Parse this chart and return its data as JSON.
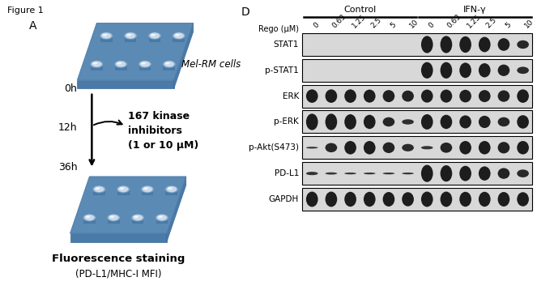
{
  "figure_label": "Figure 1",
  "panel_a_label": "A",
  "panel_d_label": "D",
  "panel_a": {
    "title_cell": "Mel-RM cells",
    "time_points": [
      "0h",
      "12h",
      "36h"
    ],
    "treatment_text": "167 kinase\ninhibitors\n(1 or 10 μM)",
    "bottom_label1": "Fluorescence staining",
    "bottom_label2": "(PD-L1/MHC-I MFI)",
    "plate_color": "#5b8ab5",
    "plate_side_color": "#4a7aa8",
    "well_color": "#ccdaeb"
  },
  "panel_d": {
    "control_label": "Control",
    "ifn_label": "IFN-γ",
    "rego_label": "Rego (μM)",
    "concentrations": [
      "0",
      "0.63",
      "1.25",
      "2.5",
      "5",
      "10",
      "0",
      "0.63",
      "1.25",
      "2.5",
      "5",
      "10"
    ],
    "row_labels": [
      "STAT1",
      "p-STAT1",
      "ERK",
      "p-ERK",
      "p-Akt(S473)",
      "PD-L1",
      "GAPDH"
    ],
    "box_bg": "#d8d8d8",
    "band_patterns": {
      "STAT1": [
        0.0,
        0.0,
        0.0,
        0.0,
        0.0,
        0.0,
        0.92,
        0.92,
        0.88,
        0.82,
        0.68,
        0.45
      ],
      "p-STAT1": [
        0.0,
        0.0,
        0.0,
        0.0,
        0.0,
        0.0,
        0.88,
        0.88,
        0.82,
        0.76,
        0.62,
        0.38
      ],
      "ERK": [
        0.72,
        0.72,
        0.72,
        0.7,
        0.65,
        0.6,
        0.7,
        0.7,
        0.68,
        0.65,
        0.62,
        0.72
      ],
      "p-ERK": [
        0.88,
        0.88,
        0.82,
        0.76,
        0.5,
        0.28,
        0.82,
        0.76,
        0.7,
        0.66,
        0.5,
        0.72
      ],
      "p-Akt(S473)": [
        0.1,
        0.5,
        0.72,
        0.72,
        0.58,
        0.4,
        0.18,
        0.55,
        0.72,
        0.72,
        0.62,
        0.72
      ],
      "PD-L1": [
        0.18,
        0.12,
        0.1,
        0.1,
        0.1,
        0.1,
        0.92,
        0.88,
        0.82,
        0.76,
        0.58,
        0.42
      ],
      "GAPDH": [
        0.82,
        0.82,
        0.8,
        0.8,
        0.78,
        0.76,
        0.82,
        0.82,
        0.8,
        0.8,
        0.78,
        0.76
      ]
    }
  }
}
